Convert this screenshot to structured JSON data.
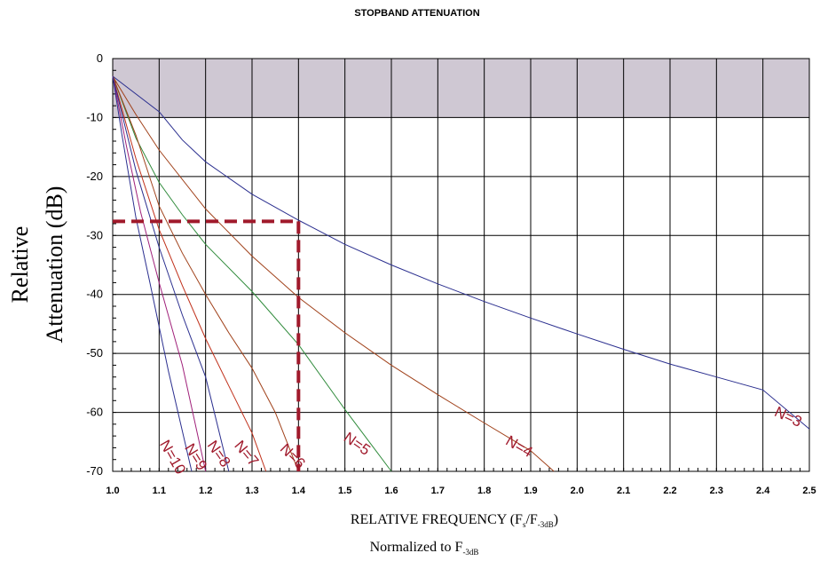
{
  "chart_data": {
    "type": "line",
    "title": "STOPBAND ATTENUATION",
    "ylabel": [
      "Relative",
      "Attenuation (dB)"
    ],
    "xlabel": {
      "main": "RELATIVE FREQUENCY (F",
      "sub1": "s",
      "mid": "/F",
      "sub2": "-3dB",
      "end": ")"
    },
    "xlabel2": {
      "main": "Normalized to F",
      "sub": "-3dB"
    },
    "xlim": [
      1.0,
      2.5
    ],
    "ylim": [
      -70,
      0
    ],
    "x_ticks": [
      "1.0",
      "1.1",
      "1.2",
      "1.3",
      "1.4",
      "1.5",
      "1.6",
      "1.7",
      "1.8",
      "1.9",
      "2.0",
      "2.1",
      "2.2",
      "2.3",
      "2.4",
      "2.5"
    ],
    "y_ticks": [
      "0",
      "-10",
      "-20",
      "-30",
      "-40",
      "-50",
      "-60",
      "-70"
    ],
    "grid": true,
    "shaded_band": {
      "y_from": 0,
      "y_to": -10,
      "color": "#cfc8d3"
    },
    "series": [
      {
        "name": "N=3",
        "color": "#2b2f8f",
        "x": [
          1.0,
          1.1,
          1.15,
          1.2,
          1.3,
          1.4,
          1.5,
          1.6,
          1.7,
          1.8,
          1.9,
          2.0,
          2.1,
          2.2,
          2.3,
          2.4,
          2.5
        ],
        "y": [
          -3.0,
          -9.0,
          -13.8,
          -17.5,
          -23.0,
          -27.4,
          -31.5,
          -35.0,
          -38.2,
          -41.2,
          -44.0,
          -46.7,
          -49.3,
          -51.8,
          -54.0,
          -56.2,
          -62.8
        ]
      },
      {
        "name": "N=4",
        "color": "#a0411a",
        "x": [
          1.0,
          1.05,
          1.1,
          1.2,
          1.3,
          1.4,
          1.5,
          1.6,
          1.7,
          1.8,
          1.9,
          1.95
        ],
        "y": [
          -3.0,
          -9.5,
          -15.5,
          -25.5,
          -33.5,
          -40.5,
          -46.5,
          -52.0,
          -57.0,
          -61.8,
          -66.5,
          -70.0
        ]
      },
      {
        "name": "N=5",
        "color": "#2e8a3a",
        "x": [
          1.0,
          1.05,
          1.1,
          1.15,
          1.2,
          1.3,
          1.4,
          1.5,
          1.6
        ],
        "y": [
          -3.0,
          -13.5,
          -21.0,
          -26.5,
          -31.5,
          -39.5,
          -48.5,
          -59.5,
          -70.0
        ]
      },
      {
        "name": "N=6",
        "color": "#a0411a",
        "x": [
          1.0,
          1.05,
          1.1,
          1.15,
          1.2,
          1.25,
          1.3,
          1.35,
          1.4
        ],
        "y": [
          -3.0,
          -13.0,
          -25.0,
          -33.0,
          -40.0,
          -46.5,
          -52.5,
          -60.0,
          -70.0
        ]
      },
      {
        "name": "N=7",
        "color": "#c0301a",
        "x": [
          1.0,
          1.05,
          1.1,
          1.15,
          1.2,
          1.25,
          1.3,
          1.33
        ],
        "y": [
          -3.0,
          -17.0,
          -29.0,
          -38.5,
          -47.5,
          -55.5,
          -63.5,
          -70.0
        ]
      },
      {
        "name": "N=8",
        "color": "#2b2f8f",
        "x": [
          1.0,
          1.05,
          1.1,
          1.15,
          1.2,
          1.25
        ],
        "y": [
          -3.0,
          -19.0,
          -32.0,
          -43.5,
          -54.0,
          -70.0
        ]
      },
      {
        "name": "N=9",
        "color": "#a0217a",
        "x": [
          1.0,
          1.03,
          1.06,
          1.1,
          1.15,
          1.2
        ],
        "y": [
          -3.0,
          -15.0,
          -26.0,
          -38.0,
          -52.0,
          -70.0
        ]
      },
      {
        "name": "N=10",
        "color": "#2b2f8f",
        "x": [
          1.0,
          1.02,
          1.05,
          1.08,
          1.12,
          1.17
        ],
        "y": [
          -3.0,
          -13.0,
          -27.0,
          -38.0,
          -53.0,
          -70.0
        ]
      }
    ],
    "annotation": {
      "type": "dashed-lines",
      "color": "#a0192b",
      "x": 1.4,
      "y": -27.6
    }
  }
}
